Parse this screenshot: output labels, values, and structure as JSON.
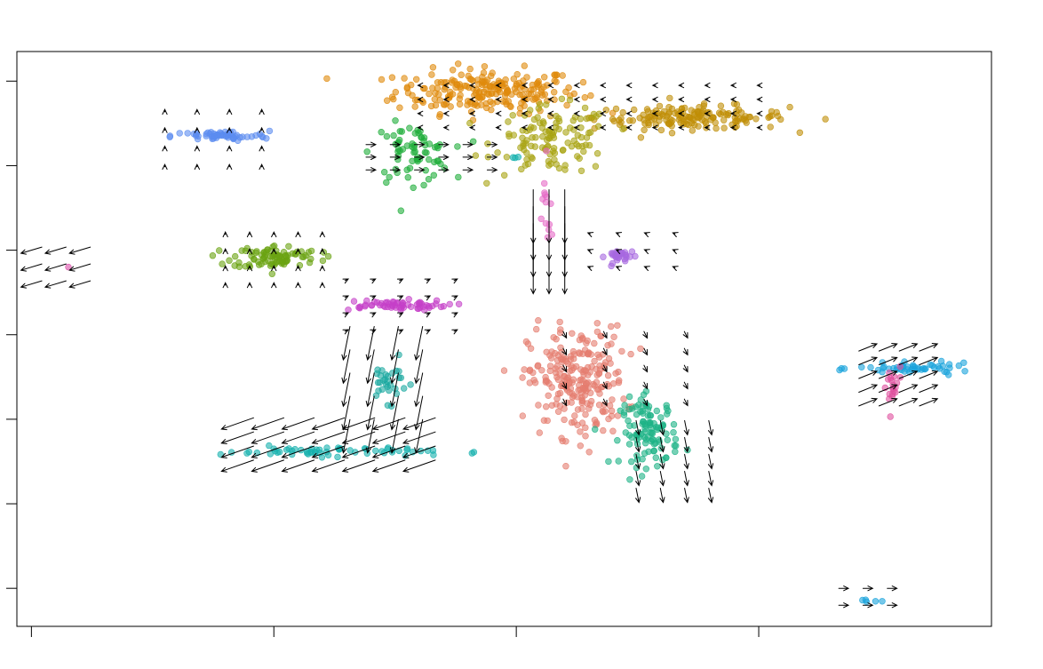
{
  "chart_data": {
    "type": "scatter",
    "title": "",
    "xlabel": "",
    "ylabel": "",
    "xlim": [
      -0.06,
      3.96
    ],
    "ylim": [
      -0.45,
      6.35
    ],
    "x_ticks": [
      0,
      1,
      2,
      3
    ],
    "y_ticks": [
      0,
      1,
      2,
      3,
      4,
      5,
      6
    ],
    "show_tick_labels": false,
    "grid": false,
    "legend": "none",
    "clusters": [
      {
        "id": "c1",
        "color": "#e08a0b",
        "cx": 1.88,
        "cy": 5.88,
        "sx": 0.19,
        "sy": 0.13,
        "n": 220
      },
      {
        "id": "c2",
        "color": "#c08e06",
        "cx": 2.72,
        "cy": 5.57,
        "sx": 0.2,
        "sy": 0.07,
        "n": 160
      },
      {
        "id": "c3",
        "color": "#a9a412",
        "cx": 2.15,
        "cy": 5.3,
        "sx": 0.12,
        "sy": 0.2,
        "n": 120
      },
      {
        "id": "c4",
        "color": "#1fae3b",
        "cx": 1.57,
        "cy": 5.15,
        "sx": 0.08,
        "sy": 0.17,
        "n": 70
      },
      {
        "id": "c5",
        "color": "#5b8cf0",
        "cx": 0.78,
        "cy": 5.35,
        "sx": 0.1,
        "sy": 0.03,
        "n": 60
      },
      {
        "id": "c6",
        "color": "#6aa312",
        "cx": 1.01,
        "cy": 3.92,
        "sx": 0.09,
        "sy": 0.07,
        "n": 90
      },
      {
        "id": "c7",
        "color": "#c540c8",
        "cx": 1.48,
        "cy": 3.35,
        "sx": 0.12,
        "sy": 0.03,
        "n": 60
      },
      {
        "id": "c8",
        "color": "#e57d6f",
        "cx": 2.25,
        "cy": 2.45,
        "sx": 0.1,
        "sy": 0.32,
        "n": 240
      },
      {
        "id": "c9",
        "color": "#1db386",
        "cx": 2.55,
        "cy": 1.85,
        "sx": 0.06,
        "sy": 0.2,
        "n": 110
      },
      {
        "id": "c10",
        "color": "#a668e0",
        "cx": 2.43,
        "cy": 3.93,
        "sx": 0.03,
        "sy": 0.04,
        "n": 30
      },
      {
        "id": "c11",
        "color": "#15b0ae",
        "cx": 1.22,
        "cy": 1.62,
        "sx": 0.22,
        "sy": 0.03,
        "n": 60
      },
      {
        "id": "c12",
        "color": "#1aa9a0",
        "cx": 1.47,
        "cy": 2.45,
        "sx": 0.04,
        "sy": 0.12,
        "n": 30
      },
      {
        "id": "c13",
        "color": "#1ba4dc",
        "cx": 3.65,
        "cy": 2.6,
        "sx": 0.12,
        "sy": 0.03,
        "n": 50
      },
      {
        "id": "c14",
        "color": "#e0509e",
        "cx": 3.55,
        "cy": 2.35,
        "sx": 0.02,
        "sy": 0.15,
        "n": 20
      },
      {
        "id": "c15",
        "color": "#1ba4dc",
        "cx": 3.45,
        "cy": -0.15,
        "sx": 0.02,
        "sy": 0.01,
        "n": 5
      },
      {
        "id": "c16",
        "color": "#e66ac6",
        "cx": 2.12,
        "cy": 4.4,
        "sx": 0.015,
        "sy": 0.3,
        "n": 14
      },
      {
        "id": "c17",
        "color": "#15b0ae",
        "cx": 2.0,
        "cy": 5.1,
        "sx": 0.01,
        "sy": 0.01,
        "n": 3
      },
      {
        "id": "c18",
        "color": "#d94ea8",
        "cx": 0.15,
        "cy": 3.8,
        "sx": 0.005,
        "sy": 0.005,
        "n": 1
      }
    ],
    "arrow_fields": [
      {
        "id": "f1",
        "x0": 1.4,
        "x1": 1.9,
        "y0": 4.95,
        "y1": 5.25,
        "nx": 6,
        "ny": 3,
        "dx": 0.03,
        "dy": 0.0,
        "scale": 0.04
      },
      {
        "id": "f2",
        "x0": 2.07,
        "x1": 2.2,
        "y0": 3.8,
        "y1": 4.4,
        "nx": 3,
        "ny": 4,
        "dx": 0.0,
        "dy": -1.0,
        "scale": 0.22
      },
      {
        "id": "f3",
        "x0": 1.3,
        "x1": 1.6,
        "y0": 1.8,
        "y1": 2.9,
        "nx": 4,
        "ny": 5,
        "dx": -0.2,
        "dy": -1.0,
        "scale": 0.14
      },
      {
        "id": "f4",
        "x0": 0.85,
        "x1": 1.6,
        "y0": 1.45,
        "y1": 1.95,
        "nx": 7,
        "ny": 4,
        "dx": -1.0,
        "dy": -0.35,
        "scale": 0.14
      },
      {
        "id": "f5",
        "x0": 2.2,
        "x1": 2.7,
        "y0": 2.2,
        "y1": 3.0,
        "nx": 4,
        "ny": 5,
        "dx": 0.1,
        "dy": -0.2,
        "scale": 0.03
      },
      {
        "id": "f6",
        "x0": 2.5,
        "x1": 2.8,
        "y0": 1.1,
        "y1": 1.9,
        "nx": 4,
        "ny": 5,
        "dx": 0.2,
        "dy": -1.0,
        "scale": 0.06
      },
      {
        "id": "f7",
        "x0": 3.45,
        "x1": 3.7,
        "y0": 2.2,
        "y1": 2.85,
        "nx": 4,
        "ny": 5,
        "dx": 1.0,
        "dy": 0.4,
        "scale": 0.08
      },
      {
        "id": "f8",
        "x0": 0.0,
        "x1": 0.2,
        "y0": 3.6,
        "y1": 4.0,
        "nx": 3,
        "ny": 3,
        "dx": -1.0,
        "dy": -0.3,
        "scale": 0.09
      },
      {
        "id": "f9",
        "x0": 3.35,
        "x1": 3.55,
        "y0": -0.2,
        "y1": 0.0,
        "nx": 3,
        "ny": 2,
        "dx": 1.0,
        "dy": 0.0,
        "scale": 0.04
      },
      {
        "id": "f10",
        "x0": 0.55,
        "x1": 0.95,
        "y0": 5.0,
        "y1": 5.65,
        "nx": 4,
        "ny": 4,
        "dx": 0.0,
        "dy": 1.0,
        "scale": 0.01
      },
      {
        "id": "f11",
        "x0": 0.8,
        "x1": 1.2,
        "y0": 3.6,
        "y1": 4.2,
        "nx": 5,
        "ny": 4,
        "dx": 0.0,
        "dy": 1.0,
        "scale": 0.01
      },
      {
        "id": "f12",
        "x0": 1.3,
        "x1": 1.75,
        "y0": 3.05,
        "y1": 3.65,
        "nx": 5,
        "ny": 4,
        "dx": 1.0,
        "dy": 0.5,
        "scale": 0.015
      },
      {
        "id": "f13",
        "x0": 1.6,
        "x1": 3.0,
        "y0": 5.45,
        "y1": 5.95,
        "nx": 14,
        "ny": 4,
        "dx": -1.0,
        "dy": 0.0,
        "scale": 0.012
      },
      {
        "id": "f14",
        "x0": 2.3,
        "x1": 2.65,
        "y0": 3.8,
        "y1": 4.2,
        "nx": 4,
        "ny": 3,
        "dx": -0.5,
        "dy": 0.2,
        "scale": 0.01
      }
    ]
  }
}
